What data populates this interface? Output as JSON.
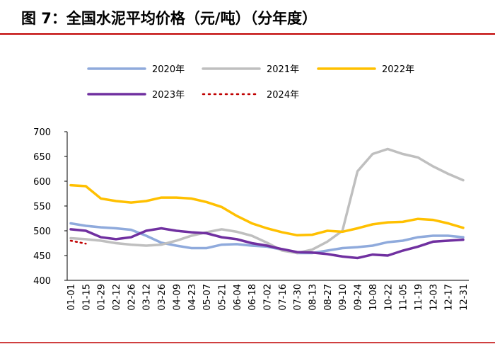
{
  "chart_data": {
    "type": "line",
    "title": "图 7：全国水泥平均价格（元/吨）（分年度）",
    "categories": [
      "01-01",
      "01-15",
      "01-29",
      "02-12",
      "02-26",
      "03-12",
      "03-26",
      "04-09",
      "04-23",
      "05-07",
      "05-21",
      "06-04",
      "06-18",
      "07-02",
      "07-16",
      "07-30",
      "08-13",
      "08-27",
      "09-10",
      "09-24",
      "10-08",
      "10-22",
      "11-05",
      "11-19",
      "12-03",
      "12-17",
      "12-31"
    ],
    "series": [
      {
        "name": "2020年",
        "color": "#8faadc",
        "values": [
          515,
          510,
          507,
          505,
          502,
          490,
          476,
          470,
          465,
          465,
          472,
          473,
          470,
          468,
          462,
          455,
          455,
          460,
          465,
          467,
          470,
          477,
          480,
          487,
          490,
          490,
          487
        ]
      },
      {
        "name": "2021年",
        "color": "#bfbfbf",
        "values": [
          485,
          483,
          480,
          475,
          472,
          470,
          472,
          480,
          490,
          497,
          503,
          498,
          490,
          476,
          460,
          455,
          462,
          478,
          500,
          620,
          655,
          665,
          655,
          648,
          630,
          615,
          602
        ]
      },
      {
        "name": "2022年",
        "color": "#ffc000",
        "values": [
          592,
          590,
          565,
          560,
          557,
          560,
          567,
          567,
          565,
          558,
          548,
          530,
          515,
          505,
          497,
          491,
          492,
          500,
          498,
          505,
          513,
          517,
          518,
          524,
          522,
          515,
          506
        ]
      },
      {
        "name": "2023年",
        "color": "#7030a0",
        "values": [
          503,
          500,
          487,
          483,
          487,
          500,
          505,
          500,
          497,
          495,
          487,
          483,
          475,
          470,
          463,
          457,
          456,
          453,
          448,
          445,
          452,
          450,
          460,
          468,
          478,
          480,
          482
        ]
      },
      {
        "name": "2024年",
        "color": "#c00000",
        "dotted": true,
        "values": [
          480,
          474,
          null,
          null,
          null,
          null,
          null,
          null,
          null,
          null,
          null,
          null,
          null,
          null,
          null,
          null,
          null,
          null,
          null,
          null,
          null,
          null,
          null,
          null,
          null,
          null,
          null
        ]
      }
    ],
    "ylim": [
      400,
      700
    ],
    "yticks": [
      400,
      450,
      500,
      550,
      600,
      650,
      700
    ]
  }
}
